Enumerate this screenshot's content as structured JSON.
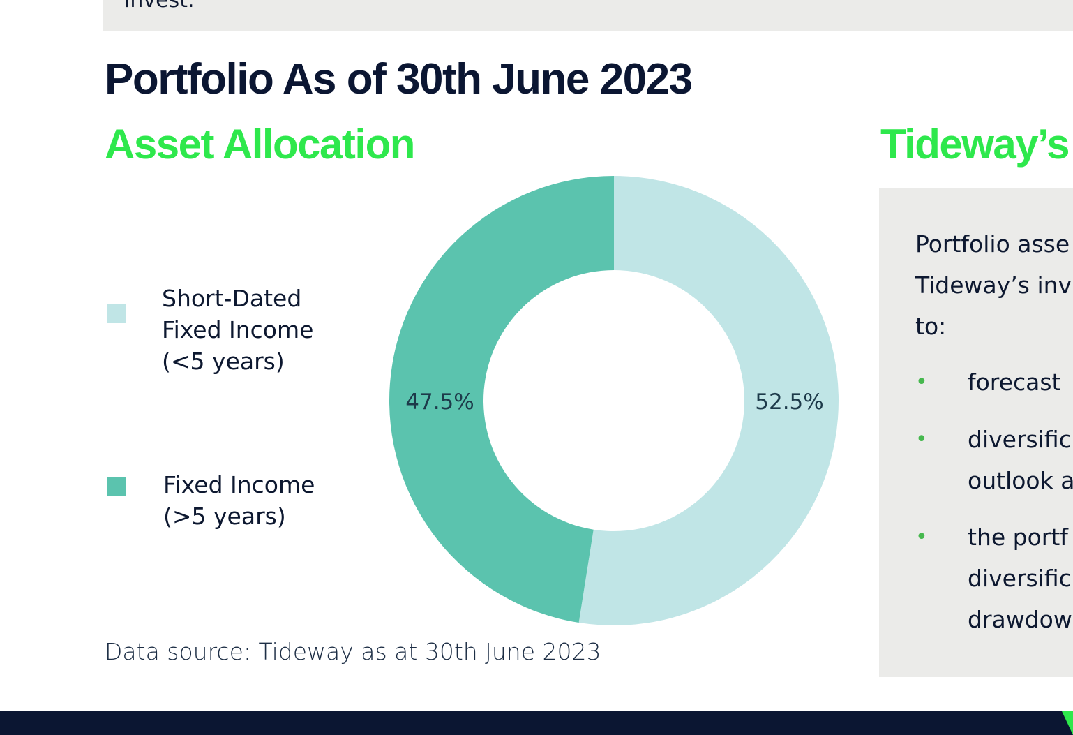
{
  "top_band": {
    "text": "invest."
  },
  "page_title": "Portfolio As of 30th June 2023",
  "left_section": {
    "title": "Asset Allocation"
  },
  "right_section": {
    "title": "Tideway’s"
  },
  "colors": {
    "title": "#0b1632",
    "accent_green": "#2ee84c",
    "slice_short_dated": "#c0e5e6",
    "slice_long_dated": "#5bc3ae",
    "panel_bg": "#ebebe9",
    "bullet": "#46b84e"
  },
  "chart_data": {
    "type": "pie",
    "donut": true,
    "slices": [
      {
        "name": "Short-Dated Fixed Income (<5 years)",
        "legend_lines": [
          "Short-Dated",
          "Fixed Income",
          "(<5 years)"
        ],
        "value": 52.5,
        "label": "52.5%",
        "color": "#c0e5e6"
      },
      {
        "name": "Fixed Income (>5 years)",
        "legend_lines": [
          "Fixed Income",
          "(>5 years)"
        ],
        "value": 47.5,
        "label": "47.5%",
        "color": "#5bc3ae"
      }
    ],
    "legend_position": "left",
    "source": "Data source: Tideway as at 30th June 2023"
  },
  "info_panel": {
    "intro_lines": [
      "Portfolio asse",
      "Tideway’s inv",
      "to:"
    ],
    "bullets": [
      {
        "lines": [
          "forecast"
        ]
      },
      {
        "lines": [
          "diversific",
          "outlook a"
        ]
      },
      {
        "lines": [
          "the portf",
          "diversific",
          "drawdow"
        ]
      }
    ]
  }
}
